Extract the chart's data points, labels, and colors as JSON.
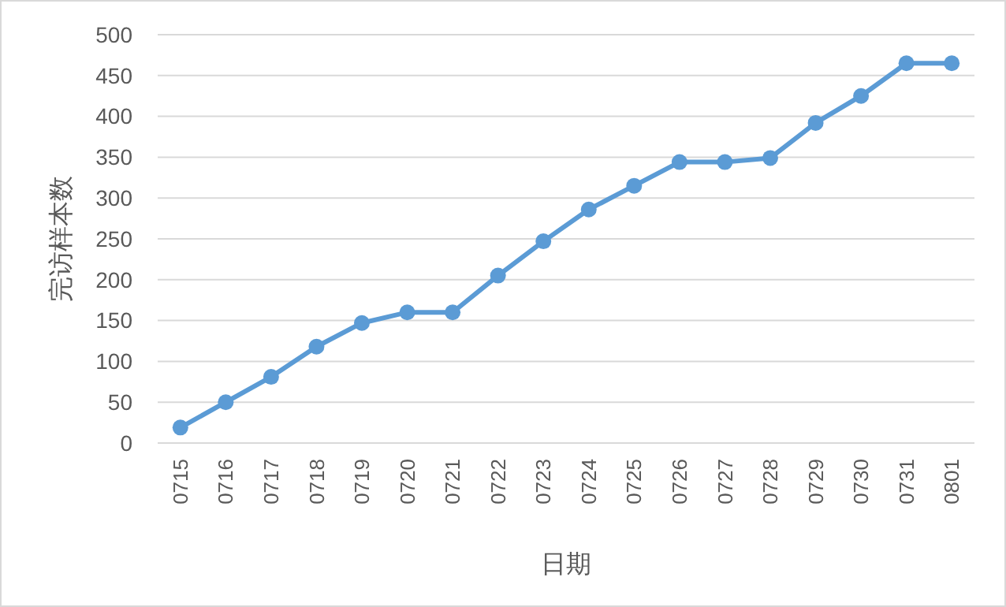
{
  "chart_data": {
    "type": "line",
    "xlabel": "日期",
    "ylabel": "完访样本数",
    "categories": [
      "0715",
      "0716",
      "0717",
      "0718",
      "0719",
      "0720",
      "0721",
      "0722",
      "0723",
      "0724",
      "0725",
      "0726",
      "0727",
      "0728",
      "0729",
      "0730",
      "0731",
      "0801"
    ],
    "series": [
      {
        "color": "#5b9bd5",
        "values": [
          19,
          50,
          81,
          118,
          147,
          160,
          160,
          205,
          247,
          286,
          315,
          344,
          344,
          349,
          392,
          425,
          465,
          465
        ]
      }
    ],
    "ylim": [
      0,
      500
    ],
    "yticks": [
      0,
      50,
      100,
      150,
      200,
      250,
      300,
      350,
      400,
      450,
      500
    ],
    "grid": "y",
    "marker": "circle",
    "line_style": "solid"
  }
}
